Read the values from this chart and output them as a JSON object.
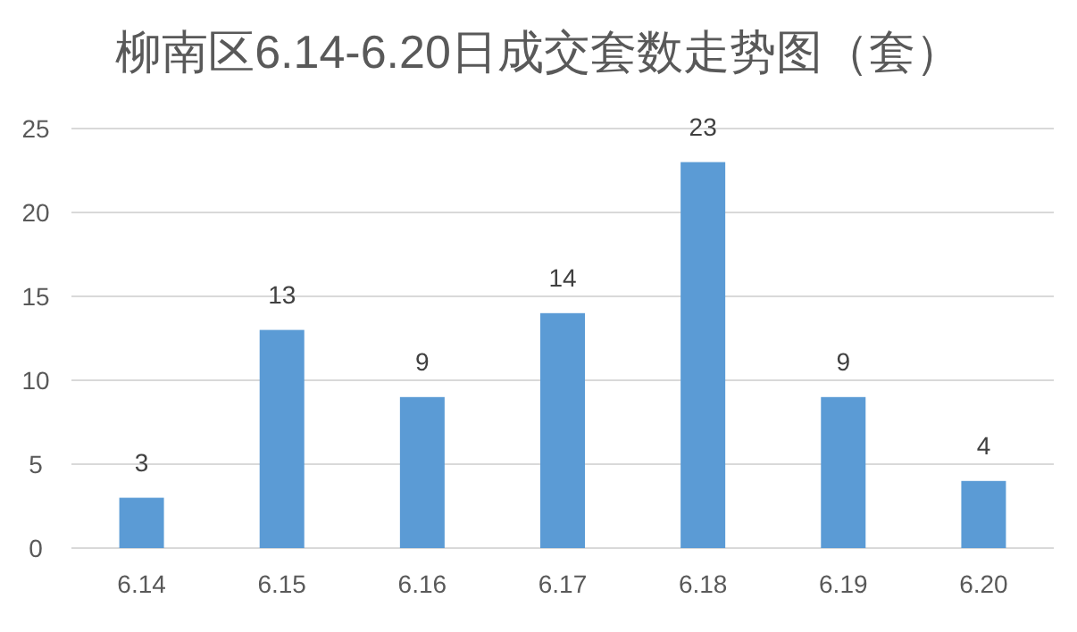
{
  "chart_data": {
    "type": "bar",
    "title": "柳南区6.14-6.20日成交套数走势图（套）",
    "categories": [
      "6.14",
      "6.15",
      "6.16",
      "6.17",
      "6.18",
      "6.19",
      "6.20"
    ],
    "values": [
      3,
      13,
      9,
      14,
      23,
      9,
      4
    ],
    "color": "#5b9bd5",
    "ylim": [
      0,
      25
    ],
    "yticks": [
      0,
      5,
      10,
      15,
      20,
      25
    ],
    "grid": "y",
    "data_labels": true
  }
}
